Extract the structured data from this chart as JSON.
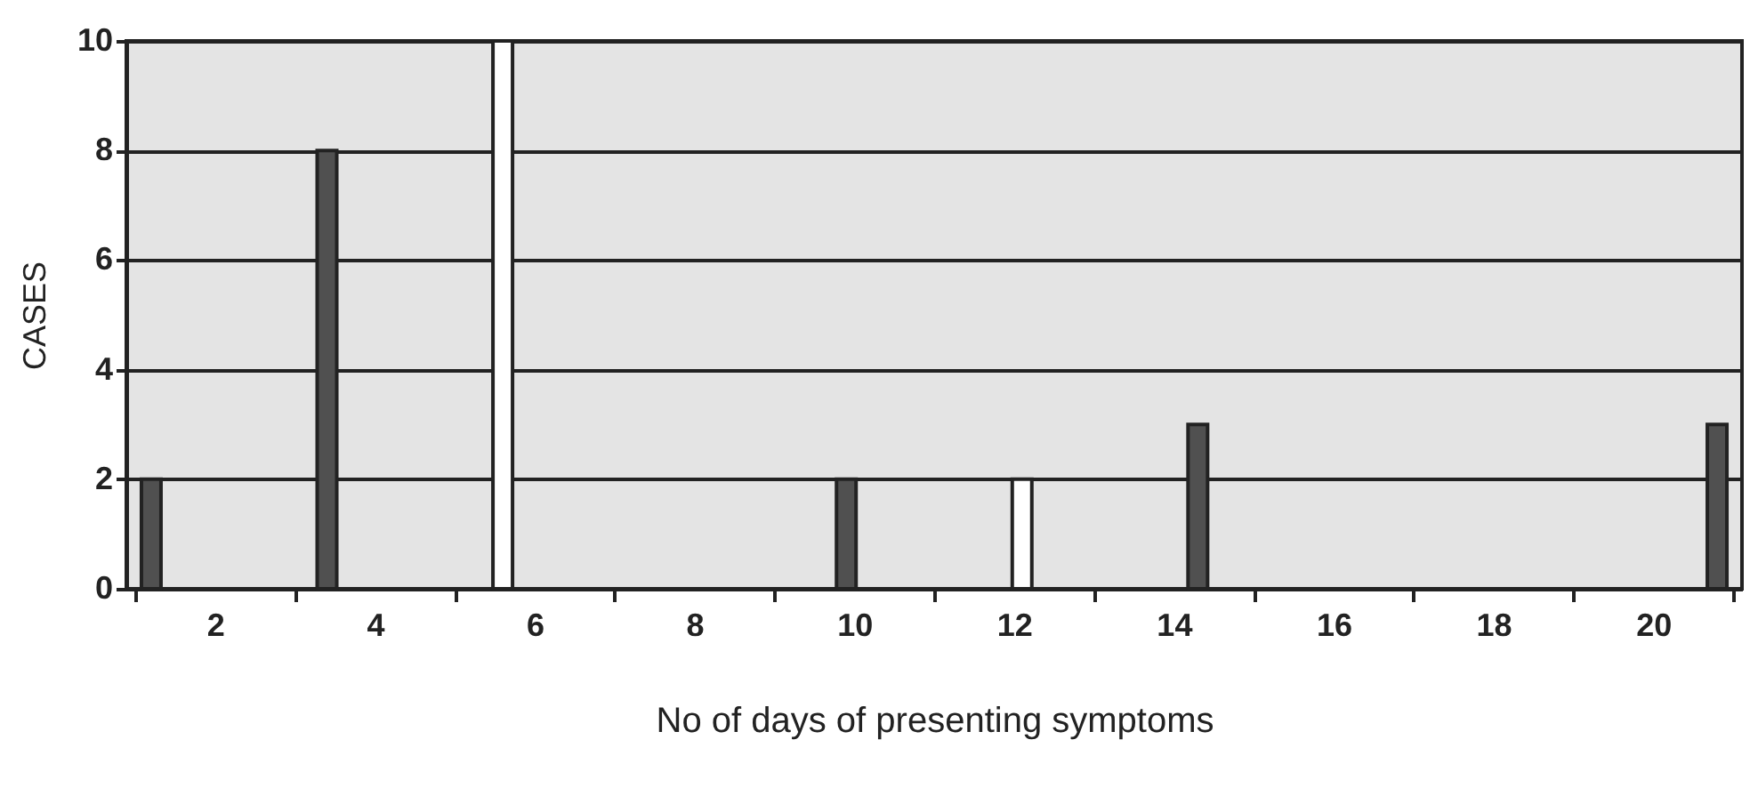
{
  "chart_data": {
    "type": "bar",
    "xlabel": "No of days of presenting symptoms",
    "ylabel": "CASES",
    "x": [
      1.2,
      3.4,
      5.6,
      9.9,
      12.1,
      14.3,
      20.8
    ],
    "values": [
      2,
      8,
      10,
      2,
      2,
      3,
      3
    ],
    "colors": [
      "#505050",
      "#505050",
      "#ffffff",
      "#505050",
      "#ffffff",
      "#505050",
      "#505050"
    ],
    "xlim": [
      1,
      21
    ],
    "xticks": [
      {
        "value": 1,
        "label": null
      },
      2,
      {
        "value": 3,
        "label": null
      },
      4,
      {
        "value": 5,
        "label": null
      },
      6,
      {
        "value": 7,
        "label": null
      },
      8,
      {
        "value": 9,
        "label": null
      },
      10,
      {
        "value": 11,
        "label": null
      },
      12,
      {
        "value": 13,
        "label": null
      },
      14,
      {
        "value": 15,
        "label": null
      },
      16,
      {
        "value": 17,
        "label": null
      },
      18,
      {
        "value": 19,
        "label": null
      },
      20,
      {
        "value": 21,
        "label": null
      }
    ],
    "ylim": [
      0,
      10
    ],
    "yticks": [
      0,
      2,
      4,
      6,
      8,
      10
    ],
    "grid": "y"
  }
}
